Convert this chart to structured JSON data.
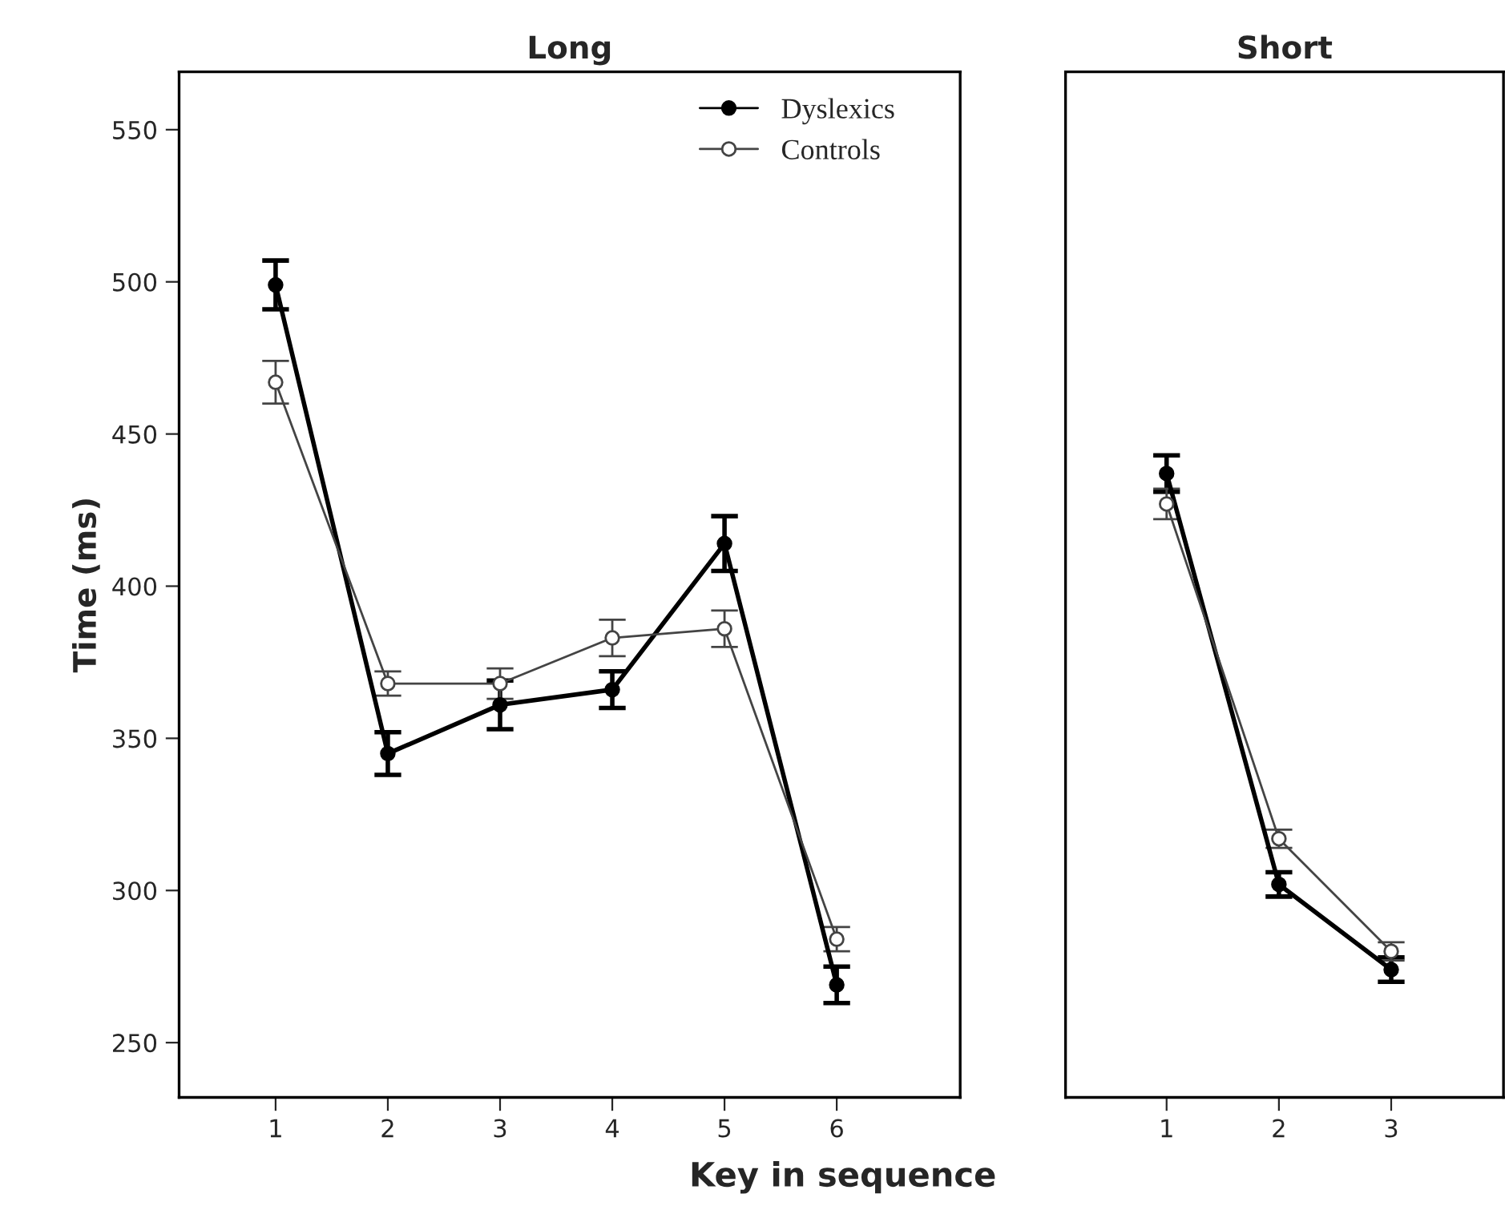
{
  "chart_data": [
    {
      "type": "line",
      "title": "Long",
      "xlabel": "Key in sequence",
      "ylabel": "Time (ms)",
      "x": [
        1,
        2,
        3,
        4,
        5,
        6
      ],
      "xlim": [
        0.14,
        7.1
      ],
      "xticks": [
        1,
        2,
        3,
        4,
        5,
        6
      ],
      "ylim": [
        232,
        569
      ],
      "yticks": [
        250,
        300,
        350,
        400,
        450,
        500,
        550
      ],
      "marker": "circle",
      "legend": "top right",
      "grid": false,
      "series": [
        {
          "name": "Dyslexics",
          "color": "#000000",
          "values": [
            499,
            345,
            361,
            366,
            414,
            269
          ],
          "errors": [
            8,
            7,
            8,
            6,
            9,
            6
          ]
        },
        {
          "name": "Controls",
          "color": "#444444",
          "values": [
            467,
            368,
            368,
            383,
            386,
            284
          ],
          "errors": [
            7,
            4,
            5,
            6,
            6,
            4
          ]
        }
      ]
    },
    {
      "type": "line",
      "title": "Short",
      "x": [
        1,
        2,
        3
      ],
      "xlim": [
        0.1,
        4.0
      ],
      "xticks": [
        1,
        2,
        3
      ],
      "ylim": [
        232,
        569
      ],
      "tick_labels": "x",
      "marker": "circle",
      "grid": false,
      "series": [
        {
          "color": "#000000",
          "values": [
            437,
            302,
            274
          ],
          "errors": [
            6,
            4,
            4
          ]
        },
        {
          "color": "#444444",
          "values": [
            427,
            317,
            280
          ],
          "errors": [
            5,
            3,
            3
          ]
        }
      ]
    }
  ]
}
